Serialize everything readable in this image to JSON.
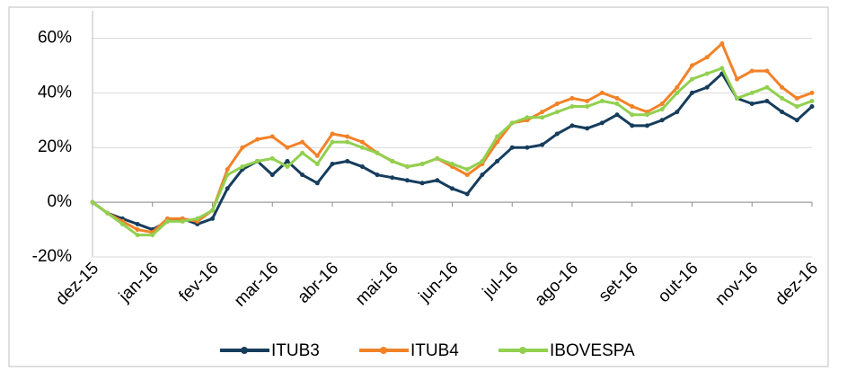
{
  "chart_data": {
    "type": "line",
    "categories": [
      "dez-15",
      null,
      null,
      null,
      "jan-16",
      null,
      null,
      null,
      "fev-16",
      null,
      null,
      null,
      "mar-16",
      null,
      null,
      null,
      "abr-16",
      null,
      null,
      null,
      "mai-16",
      null,
      null,
      null,
      "jun-16",
      null,
      null,
      null,
      "jul-16",
      null,
      null,
      null,
      "ago-16",
      null,
      null,
      null,
      "set-16",
      null,
      null,
      null,
      "out-16",
      null,
      null,
      null,
      "nov-16",
      null,
      null,
      null,
      "dez-16"
    ],
    "series": [
      {
        "name": "ITUB3",
        "color": "#163d5c",
        "values": [
          0,
          -4,
          -6,
          -8,
          -10,
          -7,
          -6,
          -8,
          -6,
          5,
          12,
          15,
          10,
          15,
          10,
          7,
          14,
          15,
          13,
          10,
          9,
          8,
          7,
          8,
          5,
          3,
          10,
          15,
          20,
          20,
          21,
          25,
          28,
          27,
          29,
          32,
          28,
          28,
          30,
          33,
          40,
          42,
          47,
          38,
          36,
          37,
          33,
          30,
          35
        ]
      },
      {
        "name": "ITUB4",
        "color": "#f28228",
        "values": [
          0,
          -4,
          -7,
          -10,
          -11,
          -6,
          -6,
          -7,
          -3,
          12,
          20,
          23,
          24,
          20,
          22,
          17,
          25,
          24,
          22,
          18,
          15,
          13,
          14,
          16,
          13,
          10,
          14,
          22,
          29,
          30,
          33,
          36,
          38,
          37,
          40,
          38,
          35,
          33,
          36,
          42,
          50,
          53,
          58,
          45,
          48,
          48,
          42,
          38,
          40
        ]
      },
      {
        "name": "IBOVESPA",
        "color": "#92d050",
        "values": [
          0,
          -4,
          -8,
          -12,
          -12,
          -7,
          -7,
          -6,
          -3,
          10,
          13,
          15,
          16,
          13,
          18,
          14,
          22,
          22,
          20,
          18,
          15,
          13,
          14,
          16,
          14,
          12,
          15,
          24,
          29,
          31,
          31,
          33,
          35,
          35,
          37,
          36,
          32,
          32,
          34,
          40,
          45,
          47,
          49,
          38,
          40,
          42,
          38,
          35,
          37
        ]
      }
    ],
    "ylim": [
      -20,
      70
    ],
    "yticks": [
      {
        "value": -20,
        "label": "-20%"
      },
      {
        "value": 0,
        "label": "0%"
      },
      {
        "value": 20,
        "label": "20%"
      },
      {
        "value": 40,
        "label": "40%"
      },
      {
        "value": 60,
        "label": "60%"
      }
    ],
    "grid": true
  }
}
